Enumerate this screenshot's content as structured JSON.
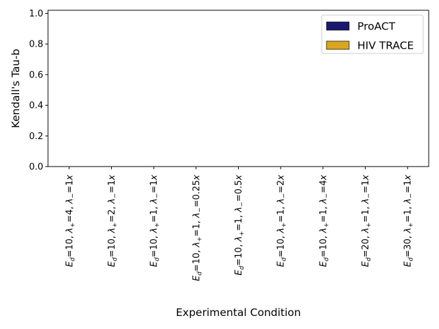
{
  "chart_data": {
    "type": "bar",
    "xlabel": "Experimental Condition",
    "ylabel": "Kendall's Tau-b",
    "ylim": [
      0,
      1.02
    ],
    "yticks": [
      0.0,
      0.2,
      0.4,
      0.6,
      0.8,
      1.0
    ],
    "ytick_labels": [
      "0.0",
      "0.2",
      "0.4",
      "0.6",
      "0.8",
      "1.0"
    ],
    "grid": false,
    "legend_position": "top-right",
    "categories": [
      {
        "Ed": "10",
        "lp": "4",
        "lm": "1x"
      },
      {
        "Ed": "10",
        "lp": "2",
        "lm": "1x"
      },
      {
        "Ed": "10",
        "lp": "1",
        "lm": "1x"
      },
      {
        "Ed": "10",
        "lp": "1",
        "lm": "0.25x"
      },
      {
        "Ed": "10",
        "lp": "1",
        "lm": "0.5x"
      },
      {
        "Ed": "10",
        "lp": "1",
        "lm": "2x"
      },
      {
        "Ed": "10",
        "lp": "1",
        "lm": "4x"
      },
      {
        "Ed": "20",
        "lp": "1",
        "lm": "1x"
      },
      {
        "Ed": "30",
        "lp": "1",
        "lm": "1x"
      }
    ],
    "series": [
      {
        "name": "ProACT",
        "color": "#191970",
        "values": [
          0,
          0,
          0,
          0,
          0,
          0,
          0,
          0,
          0
        ]
      },
      {
        "name": "HIV TRACE",
        "color": "#DAA520",
        "values": [
          0,
          0,
          0,
          0,
          0,
          0,
          0,
          0,
          0
        ]
      }
    ]
  }
}
